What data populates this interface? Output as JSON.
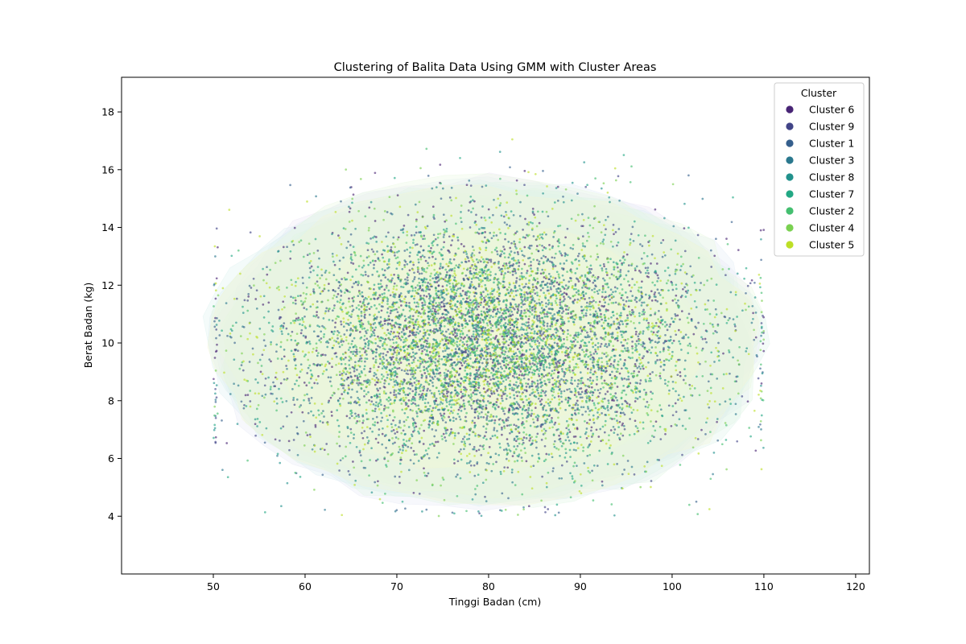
{
  "chart_data": {
    "type": "scatter",
    "title": "Clustering of Balita Data Using GMM with Cluster Areas",
    "xlabel": "Tinggi Badan (cm)",
    "ylabel": "Berat Badan (kg)",
    "xlim": [
      40,
      121.5
    ],
    "ylim": [
      2,
      19.2
    ],
    "xticks": [
      50,
      60,
      70,
      80,
      90,
      100,
      110,
      120
    ],
    "yticks": [
      4,
      6,
      8,
      10,
      12,
      14,
      16,
      18
    ],
    "grid": false,
    "legend": {
      "title": "Cluster",
      "placement": "top-right",
      "entries": [
        "Cluster 6",
        "Cluster 9",
        "Cluster 1",
        "Cluster 3",
        "Cluster 8",
        "Cluster 7",
        "Cluster 2",
        "Cluster 4",
        "Cluster 5"
      ]
    },
    "series": [
      {
        "name": "Cluster 6",
        "color": "#482475",
        "area_color": "#ece6f6",
        "center": [
          80,
          10
        ],
        "spread": [
          11.5,
          2.1
        ],
        "count": 900
      },
      {
        "name": "Cluster 9",
        "color": "#414487",
        "area_color": "#e6e8f5",
        "center": [
          80,
          10
        ],
        "spread": [
          11.5,
          2.1
        ],
        "count": 900
      },
      {
        "name": "Cluster 1",
        "color": "#355f8d",
        "area_color": "#e3edf7",
        "center": [
          80,
          10
        ],
        "spread": [
          11.5,
          2.1
        ],
        "count": 900
      },
      {
        "name": "Cluster 3",
        "color": "#2a788e",
        "area_color": "#ddeef2",
        "center": [
          80,
          10
        ],
        "spread": [
          11.5,
          2.1
        ],
        "count": 900
      },
      {
        "name": "Cluster 8",
        "color": "#21918c",
        "area_color": "#dcf2ef",
        "center": [
          80,
          10
        ],
        "spread": [
          11.5,
          2.1
        ],
        "count": 900
      },
      {
        "name": "Cluster 7",
        "color": "#22a884",
        "area_color": "#dcf4ea",
        "center": [
          80,
          10
        ],
        "spread": [
          11.5,
          2.1
        ],
        "count": 900
      },
      {
        "name": "Cluster 2",
        "color": "#44bf70",
        "area_color": "#e0f6e4",
        "center": [
          80,
          10
        ],
        "spread": [
          11.5,
          2.1
        ],
        "count": 900
      },
      {
        "name": "Cluster 4",
        "color": "#7ad151",
        "area_color": "#e8f8df",
        "center": [
          80,
          10
        ],
        "spread": [
          11.5,
          2.1
        ],
        "count": 900
      },
      {
        "name": "Cluster 5",
        "color": "#bddf26",
        "area_color": "#f3f7d6",
        "center": [
          80,
          10
        ],
        "spread": [
          11.5,
          2.1
        ],
        "count": 900
      }
    ],
    "observed_range": {
      "x": [
        50,
        110
      ],
      "y": [
        4,
        17.4
      ]
    }
  }
}
